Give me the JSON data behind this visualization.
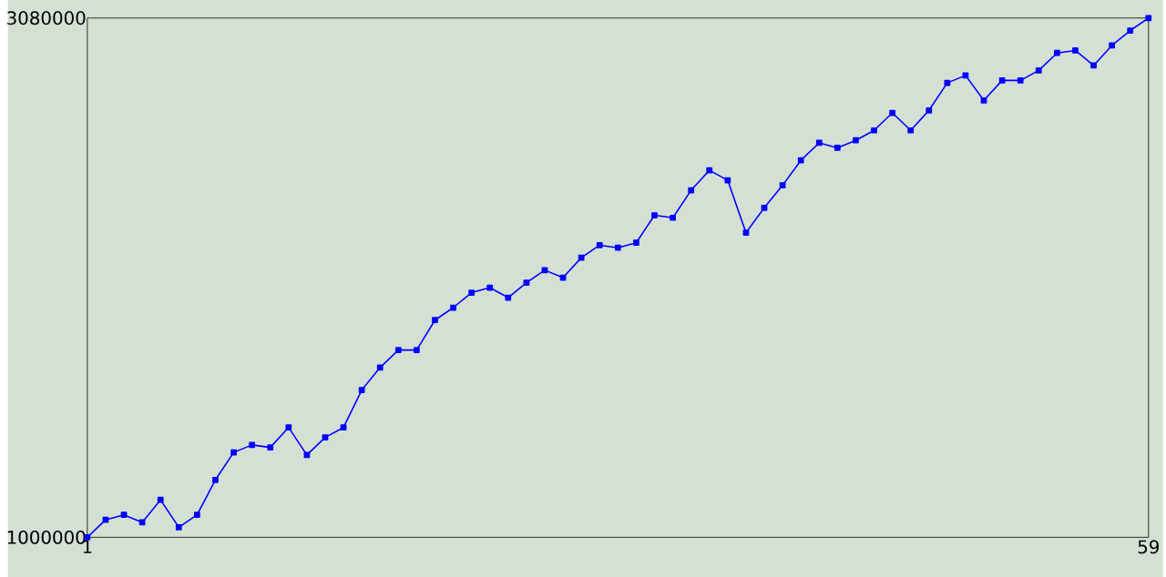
{
  "chart_data": {
    "type": "line",
    "x": [
      1,
      2,
      3,
      4,
      5,
      6,
      7,
      8,
      9,
      10,
      11,
      12,
      13,
      14,
      15,
      16,
      17,
      18,
      19,
      20,
      21,
      22,
      23,
      24,
      25,
      26,
      27,
      28,
      29,
      30,
      31,
      32,
      33,
      34,
      35,
      36,
      37,
      38,
      39,
      40,
      41,
      42,
      43,
      44,
      45,
      46,
      47,
      48,
      49,
      50,
      51,
      52,
      53,
      54,
      55,
      56,
      57,
      58,
      59
    ],
    "values": [
      1000000,
      1070000,
      1090000,
      1060000,
      1150000,
      1040000,
      1090000,
      1230000,
      1340000,
      1370000,
      1360000,
      1440000,
      1330000,
      1400000,
      1440000,
      1590000,
      1680000,
      1750000,
      1750000,
      1870000,
      1920000,
      1980000,
      2000000,
      1960000,
      2020000,
      2070000,
      2040000,
      2120000,
      2170000,
      2160000,
      2180000,
      2290000,
      2280000,
      2390000,
      2470000,
      2430000,
      2220000,
      2320000,
      2410000,
      2510000,
      2580000,
      2560000,
      2590000,
      2630000,
      2700000,
      2630000,
      2710000,
      2820000,
      2850000,
      2750000,
      2830000,
      2830000,
      2870000,
      2940000,
      2950000,
      2890000,
      2970000,
      3030000,
      3080000
    ],
    "color": "#0000ff",
    "marker": "square",
    "grid": false,
    "xlim": [
      1,
      59
    ],
    "xticks": [
      1,
      59
    ],
    "ylim": [
      1000000,
      3080000
    ],
    "yticks": [
      1000000,
      3080000
    ]
  }
}
